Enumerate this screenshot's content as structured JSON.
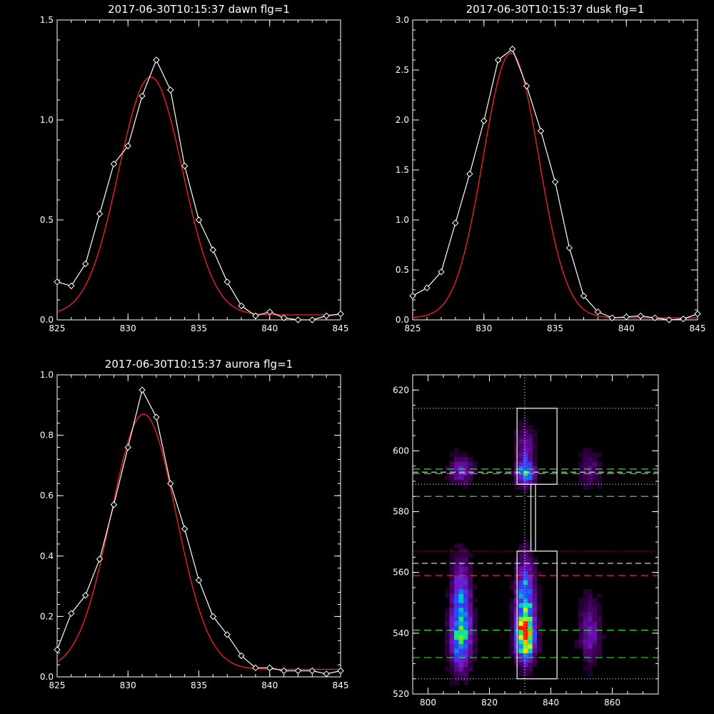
{
  "colors": {
    "background": "#000000",
    "axes": "#ffffff",
    "data_line": "#ffffff",
    "fit_line": "#ff2020",
    "green_dash": "#33dd33",
    "red_dash": "#ff2020"
  },
  "chart_data": [
    {
      "type": "line",
      "title": "2017-06-30T10:15:37 dawn flg=1",
      "xlim": [
        825,
        845
      ],
      "ylim": [
        0,
        1.5
      ],
      "xticks": [
        "825",
        "830",
        "835",
        "840",
        "845"
      ],
      "yticks": [
        "0.0",
        "0.5",
        "1.0",
        "1.5"
      ],
      "series": [
        {
          "style": "white-diamond",
          "x": [
            825,
            826,
            827,
            828,
            829,
            830,
            831,
            832,
            833,
            834,
            835,
            836,
            837,
            838,
            839,
            840,
            841,
            842,
            843,
            844,
            845
          ],
          "y": [
            0.19,
            0.17,
            0.28,
            0.53,
            0.78,
            0.87,
            1.12,
            1.3,
            1.15,
            0.77,
            0.5,
            0.35,
            0.19,
            0.07,
            0.02,
            0.04,
            0.01,
            0.0,
            0.0,
            0.02,
            0.03
          ]
        },
        {
          "style": "red-fit",
          "gaussian": {
            "amp": 1.19,
            "center": 831.6,
            "sigma": 2.25,
            "offset": 0.025
          }
        }
      ]
    },
    {
      "type": "line",
      "title": "2017-06-30T10:15:37 dusk flg=1",
      "xlim": [
        825,
        845
      ],
      "ylim": [
        0,
        3.0
      ],
      "xticks": [
        "825",
        "830",
        "835",
        "840",
        "845"
      ],
      "yticks": [
        "0.0",
        "0.5",
        "1.0",
        "1.5",
        "2.0",
        "2.5",
        "3.0"
      ],
      "series": [
        {
          "style": "white-diamond",
          "x": [
            825,
            826,
            827,
            828,
            829,
            830,
            831,
            832,
            833,
            834,
            835,
            836,
            837,
            838,
            839,
            840,
            841,
            842,
            843,
            844,
            845
          ],
          "y": [
            0.24,
            0.32,
            0.48,
            0.97,
            1.46,
            1.99,
            2.6,
            2.71,
            2.34,
            1.89,
            1.38,
            0.72,
            0.24,
            0.08,
            0.02,
            0.03,
            0.04,
            0.02,
            0.0,
            0.01,
            0.06
          ]
        },
        {
          "style": "red-fit",
          "gaussian": {
            "amp": 2.65,
            "center": 831.9,
            "sigma": 1.95,
            "offset": 0.02
          }
        }
      ]
    },
    {
      "type": "line",
      "title": "2017-06-30T10:15:37 aurora flg=1",
      "xlim": [
        825,
        845
      ],
      "ylim": [
        0,
        1.0
      ],
      "xticks": [
        "825",
        "830",
        "835",
        "840",
        "845"
      ],
      "yticks": [
        "0.0",
        "0.2",
        "0.4",
        "0.6",
        "0.8",
        "1.0"
      ],
      "series": [
        {
          "style": "white-diamond",
          "x": [
            825,
            826,
            827,
            828,
            829,
            830,
            831,
            832,
            833,
            834,
            835,
            836,
            837,
            838,
            839,
            840,
            841,
            842,
            843,
            844,
            845
          ],
          "y": [
            0.09,
            0.21,
            0.27,
            0.39,
            0.57,
            0.76,
            0.95,
            0.86,
            0.64,
            0.49,
            0.32,
            0.2,
            0.14,
            0.07,
            0.03,
            0.03,
            0.02,
            0.02,
            0.02,
            0.01,
            0.02
          ]
        },
        {
          "style": "red-fit",
          "gaussian": {
            "amp": 0.845,
            "center": 831.1,
            "sigma": 2.3,
            "offset": 0.025
          }
        }
      ]
    },
    {
      "type": "heatmap",
      "xlim": [
        795,
        875
      ],
      "ylim": [
        520,
        625
      ],
      "xticks": [
        "800",
        "820",
        "840",
        "860"
      ],
      "yticks": [
        "520",
        "540",
        "560",
        "580",
        "600",
        "620"
      ],
      "blobs": [
        {
          "x": 810,
          "y": 538,
          "sx": 2.2,
          "sy": 7,
          "amp": 0.62
        },
        {
          "x": 810,
          "y": 552,
          "sx": 2.0,
          "sy": 8,
          "amp": 0.38
        },
        {
          "x": 810,
          "y": 593,
          "sx": 2.5,
          "sy": 3,
          "amp": 0.28
        },
        {
          "x": 831,
          "y": 538,
          "sx": 2.0,
          "sy": 5,
          "amp": 0.95
        },
        {
          "x": 831,
          "y": 550,
          "sx": 2.0,
          "sy": 9,
          "amp": 0.55
        },
        {
          "x": 831,
          "y": 592,
          "sx": 2.0,
          "sy": 2.5,
          "amp": 0.6
        },
        {
          "x": 831,
          "y": 600,
          "sx": 1.8,
          "sy": 5,
          "amp": 0.25
        },
        {
          "x": 852,
          "y": 540,
          "sx": 2.2,
          "sy": 7,
          "amp": 0.25
        },
        {
          "x": 852,
          "y": 593,
          "sx": 2.5,
          "sy": 4,
          "amp": 0.15
        }
      ],
      "vertical_dotted_x": 831.5,
      "dotted_lines_y": [
        525,
        567,
        589,
        614
      ],
      "red_dotted_y": 567,
      "green_dashed_y": [
        532,
        541,
        585,
        592.5,
        594
      ],
      "white_dashed_y": [
        563,
        593
      ],
      "red_dashed_y": 559,
      "boxes": [
        {
          "x0": 829,
          "x1": 842,
          "y0": 525,
          "y1": 567
        },
        {
          "x0": 829,
          "x1": 842,
          "y0": 589,
          "y1": 614
        },
        {
          "x0": 833.5,
          "x1": 835,
          "y0": 567,
          "y1": 589
        }
      ]
    }
  ]
}
